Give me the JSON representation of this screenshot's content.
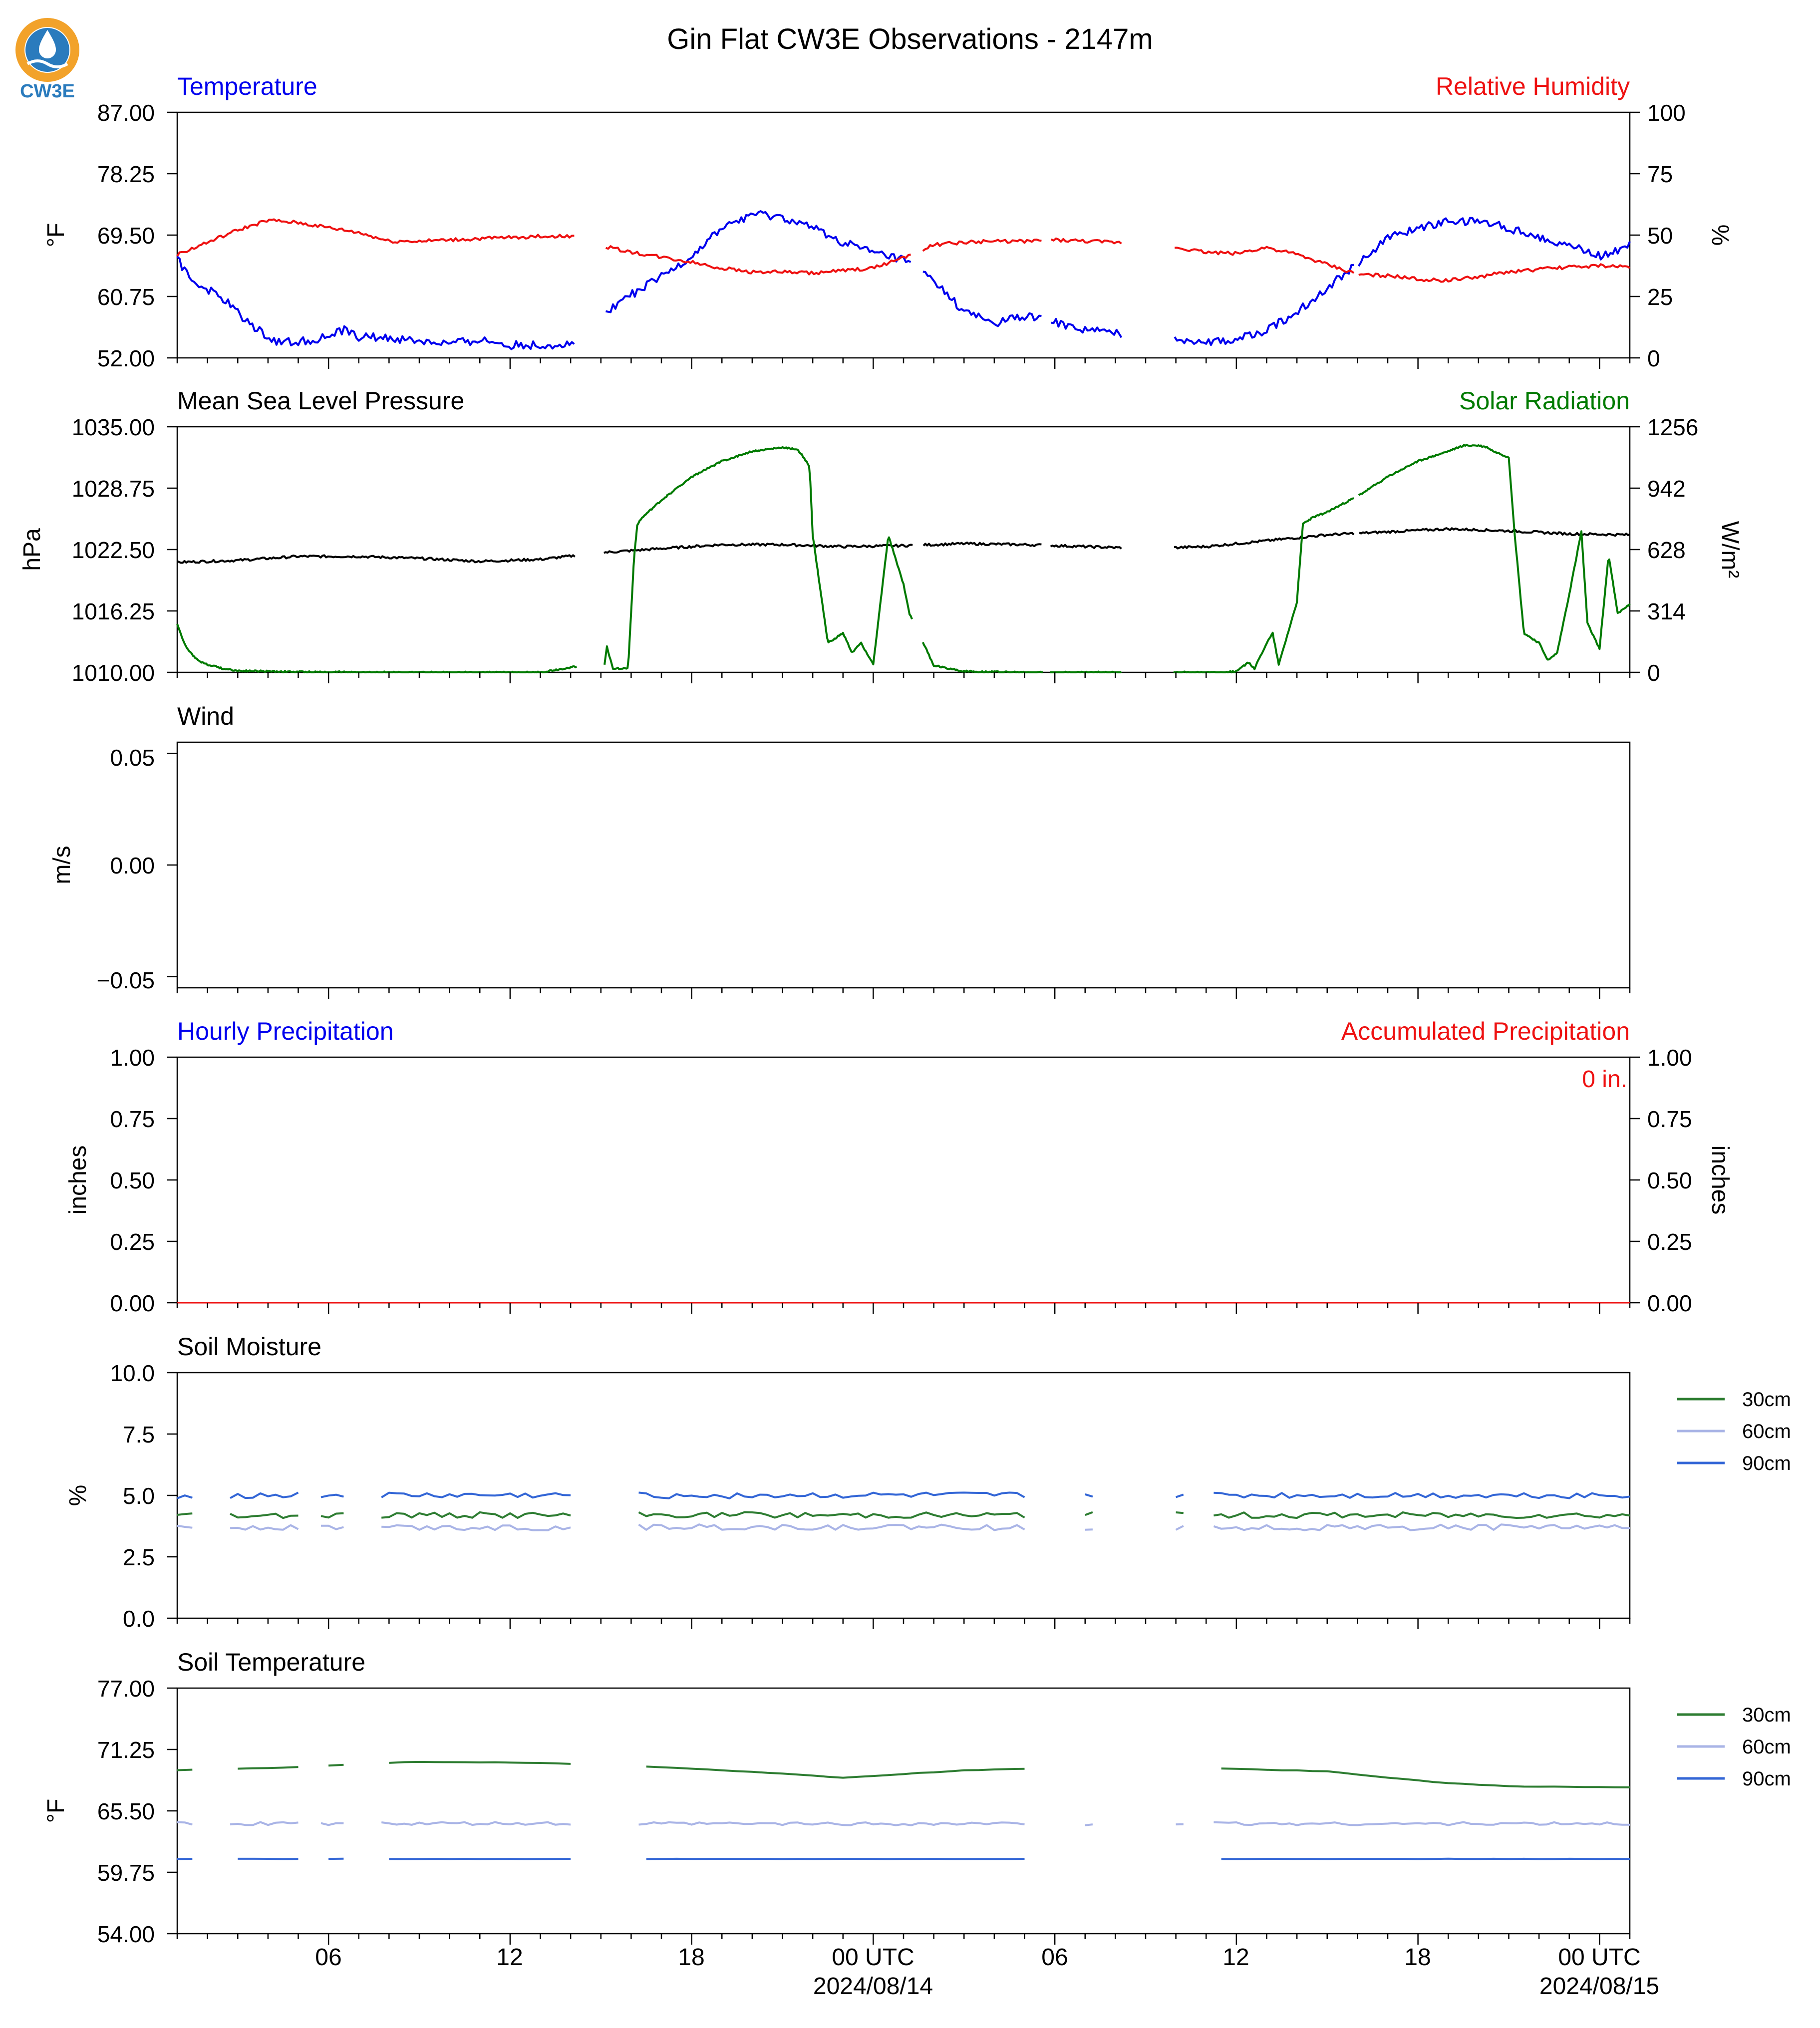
{
  "title": "Gin Flat CW3E Observations - 2147m",
  "logo": {
    "text": "CW3E",
    "colors": {
      "ring": "#f2a22a",
      "drop": "#2a7bbd",
      "wave": "#1d5f96"
    }
  },
  "colors": {
    "blue": "#0000ee",
    "red": "#ee1111",
    "green": "#007a00",
    "black": "#000000",
    "soil30": "#2e7d32",
    "soil60": "#a9b4e6",
    "soil90": "#3366d6"
  },
  "x_axis": {
    "range_hours": [
      0,
      48
    ],
    "ticks": [
      {
        "h": 5,
        "label": "06"
      },
      {
        "h": 11,
        "label": "12"
      },
      {
        "h": 17,
        "label": "18"
      },
      {
        "h": 23,
        "label": "00 UTC",
        "sublabel": "2024/08/14"
      },
      {
        "h": 29,
        "label": "06"
      },
      {
        "h": 35,
        "label": "12"
      },
      {
        "h": 41,
        "label": "18"
      },
      {
        "h": 47,
        "label": "00 UTC",
        "sublabel": "2024/08/15"
      }
    ]
  },
  "chart_data": [
    {
      "type": "line",
      "left_title": "Temperature",
      "right_title": "Relative Humidity",
      "ylabel": "°F",
      "ylim": [
        52,
        87
      ],
      "yticks": [
        "52.00",
        "60.75",
        "69.50",
        "78.25",
        "87.00"
      ],
      "ylabel_right": "%",
      "ylim_right": [
        0,
        100
      ],
      "yticks_right": [
        "0",
        "25",
        "50",
        "75",
        "100"
      ],
      "gaps_hours": [
        [
          13.2,
          14.1
        ],
        [
          24.3,
          24.6
        ],
        [
          28.6,
          28.8
        ],
        [
          31.2,
          32.9
        ],
        [
          38.9,
          39.0
        ]
      ],
      "series": [
        {
          "role": "temperature",
          "axis": "left",
          "color": "blue",
          "x": [
            0,
            0.5,
            1.5,
            2.5,
            3.3,
            4,
            5,
            5.5,
            6,
            7,
            8,
            9,
            10,
            11,
            12,
            13.2,
            14.1,
            15,
            16,
            17,
            18,
            19,
            20,
            21,
            22,
            23,
            24,
            25,
            26,
            27,
            28,
            29,
            30,
            31,
            32,
            33,
            34,
            35,
            36,
            37,
            38,
            39,
            40,
            41,
            42,
            43,
            44,
            45,
            46,
            47,
            48
          ],
          "y": [
            66,
            63,
            60.5,
            56.5,
            54.3,
            54.3,
            55,
            56,
            55,
            54.8,
            54.4,
            54,
            54.6,
            53.8,
            53.8,
            53.9,
            58.5,
            61,
            63.5,
            66.5,
            70.5,
            72.5,
            72,
            70.5,
            68.5,
            67,
            66,
            63,
            58.5,
            57,
            58,
            57,
            56,
            55.5,
            55,
            54.8,
            54.3,
            54.5,
            56,
            58.5,
            62,
            65.5,
            69,
            70.5,
            71.5,
            71.5,
            70.5,
            69.3,
            68,
            66.5,
            68
          ]
        },
        {
          "role": "humidity",
          "axis": "right",
          "color": "red",
          "x": [
            0,
            1,
            2,
            3,
            4,
            5,
            6,
            7,
            8,
            9,
            10,
            11,
            12,
            13.2,
            14.1,
            15,
            16,
            17,
            18,
            19,
            20,
            21,
            22,
            23,
            24,
            25,
            26,
            27,
            28,
            29,
            30,
            31,
            32,
            33,
            34,
            35,
            36,
            37,
            38,
            39,
            40,
            41,
            42,
            43,
            44,
            45,
            46,
            47,
            48
          ],
          "y": [
            42,
            47,
            52,
            56,
            55,
            53,
            51,
            47.5,
            47.5,
            48,
            48.5,
            49,
            49.5,
            49.5,
            45.5,
            43,
            41,
            39,
            36.5,
            35,
            35,
            34.5,
            35.5,
            36.5,
            41,
            46,
            47,
            47.5,
            47.5,
            48,
            47.5,
            47,
            46.5,
            45,
            43,
            42.5,
            45,
            42,
            38,
            34,
            33.5,
            32,
            31.5,
            33,
            35,
            36,
            37,
            37.5,
            37
          ]
        }
      ]
    },
    {
      "type": "line",
      "left_title": "Mean Sea Level Pressure",
      "right_title": "Solar Radiation",
      "ylabel": "hPa",
      "ylim": [
        1010,
        1035
      ],
      "yticks": [
        "1010.00",
        "1016.25",
        "1022.50",
        "1028.75",
        "1035.00"
      ],
      "ylabel_right": "W/m²",
      "ylim_right": [
        0,
        1256
      ],
      "yticks_right": [
        "0",
        "314",
        "628",
        "942",
        "1256"
      ],
      "gaps_hours": [
        [
          13.2,
          14.1
        ],
        [
          24.3,
          24.6
        ],
        [
          28.6,
          28.8
        ],
        [
          31.2,
          32.9
        ],
        [
          38.9,
          39.0
        ]
      ],
      "series": [
        {
          "role": "pressure",
          "axis": "left",
          "color": "black",
          "x": [
            0,
            2,
            4,
            6,
            8,
            10,
            12,
            13.2,
            14.1,
            16,
            18,
            20,
            22,
            24,
            26,
            28,
            30,
            32,
            34,
            36,
            38,
            40,
            42,
            44,
            46,
            48
          ],
          "y": [
            1021.2,
            1021.4,
            1021.8,
            1021.8,
            1021.6,
            1021.3,
            1021.5,
            1021.9,
            1022.2,
            1022.6,
            1023.0,
            1023.0,
            1022.8,
            1022.9,
            1023.1,
            1023.0,
            1022.8,
            1022.6,
            1022.8,
            1023.4,
            1024.0,
            1024.3,
            1024.6,
            1024.4,
            1024.1,
            1024.0
          ]
        },
        {
          "role": "solar",
          "axis": "right",
          "color": "green",
          "x": [
            0,
            0.1,
            0.3,
            0.5,
            0.7,
            1,
            1.5,
            2,
            4,
            8,
            12,
            13.2,
            14.1,
            14.2,
            14.4,
            14.9,
            15.1,
            15.2,
            15.3,
            15.5,
            16,
            17,
            18,
            19,
            20,
            20.5,
            20.7,
            20.9,
            21,
            21.5,
            22,
            22.3,
            22.6,
            23,
            23.5,
            24,
            24.2,
            25,
            26,
            28,
            30,
            31,
            33,
            34.6,
            35,
            35.4,
            35.6,
            36,
            36.2,
            36.4,
            37,
            37.2,
            37.5,
            38,
            39,
            40,
            41,
            42,
            42.5,
            43,
            43.3,
            43.5,
            44,
            44.2,
            44.5,
            45,
            45.3,
            45.6,
            46,
            46.4,
            46.6,
            47,
            47.3,
            47.6,
            48
          ],
          "y": [
            250,
            200,
            130,
            90,
            60,
            40,
            20,
            8,
            2,
            0,
            0,
            30,
            20,
            130,
            20,
            20,
            600,
            750,
            780,
            810,
            880,
            1000,
            1080,
            1130,
            1150,
            1140,
            1100,
            1050,
            700,
            150,
            200,
            100,
            150,
            40,
            700,
            450,
            300,
            35,
            5,
            0,
            0,
            0,
            0,
            0,
            5,
            50,
            20,
            150,
            200,
            40,
            360,
            760,
            790,
            820,
            900,
            1000,
            1080,
            1130,
            1160,
            1160,
            1150,
            1130,
            1100,
            700,
            200,
            150,
            60,
            100,
            400,
            720,
            250,
            120,
            600,
            300,
            350
          ]
        }
      ]
    },
    {
      "type": "line",
      "left_title": "Wind",
      "ylabel": "m/s",
      "ylim": [
        -0.055,
        0.055
      ],
      "yticks": [
        "−0.05",
        "0.00",
        "0.05"
      ],
      "series": []
    },
    {
      "type": "bar",
      "left_title": "Hourly Precipitation",
      "right_title": "Accumulated Precipitation",
      "ylabel": "inches",
      "ylim": [
        0,
        1
      ],
      "yticks": [
        "0.00",
        "0.25",
        "0.50",
        "0.75",
        "1.00"
      ],
      "ylabel_right": "inches",
      "ylim_right": [
        0,
        1
      ],
      "yticks_right": [
        "0.00",
        "0.25",
        "0.50",
        "0.75",
        "1.00"
      ],
      "annotation": "0 in.",
      "series": [
        {
          "role": "hourly",
          "color": "blue",
          "value": 0
        },
        {
          "role": "accumulated",
          "color": "red",
          "value": 0
        }
      ]
    },
    {
      "type": "line",
      "left_title": "Soil Moisture",
      "ylabel": "%",
      "ylim": [
        0,
        10
      ],
      "yticks": [
        "0.0",
        "2.5",
        "5.0",
        "7.5",
        "10.0"
      ],
      "legend": [
        "30cm",
        "60cm",
        "90cm"
      ],
      "gaps_hours": [
        [
          0.5,
          1.7
        ],
        [
          4.1,
          4.6
        ],
        [
          5.5,
          6.7
        ],
        [
          13.2,
          14.1
        ],
        [
          14.4,
          15.1
        ],
        [
          28.2,
          28.8
        ],
        [
          29.2,
          29.8
        ],
        [
          30.3,
          30.8
        ],
        [
          31.2,
          32.9
        ],
        [
          33.3,
          34.2
        ],
        [
          38.9,
          39.0
        ]
      ],
      "series": [
        {
          "name": "30cm",
          "color": "soil30",
          "x": [
            0,
            48
          ],
          "y": [
            4.2,
            4.2
          ]
        },
        {
          "name": "60cm",
          "color": "soil60",
          "x": [
            0,
            48
          ],
          "y": [
            3.7,
            3.7
          ]
        },
        {
          "name": "90cm",
          "color": "soil90",
          "x": [
            0,
            48
          ],
          "y": [
            5.0,
            5.0
          ]
        }
      ]
    },
    {
      "type": "line",
      "left_title": "Soil Temperature",
      "ylabel": "°F",
      "ylim": [
        54,
        77
      ],
      "yticks": [
        "54.00",
        "59.75",
        "65.50",
        "71.25",
        "77.00"
      ],
      "legend": [
        "30cm",
        "60cm",
        "90cm"
      ],
      "gaps_hours": [
        [
          0.5,
          1.7
        ],
        [
          4.1,
          4.6
        ],
        [
          5.5,
          6.7
        ],
        [
          13.2,
          14.1
        ],
        [
          14.4,
          15.1
        ],
        [
          28.2,
          28.8
        ],
        [
          29.2,
          29.8
        ],
        [
          30.3,
          30.8
        ],
        [
          31.2,
          32.9
        ],
        [
          33.3,
          34.2
        ],
        [
          38.9,
          39.0
        ]
      ],
      "series": [
        {
          "name": "30cm",
          "color": "soil30",
          "x": [
            0,
            4,
            6,
            8,
            12,
            16,
            20,
            22,
            26,
            30,
            34,
            38,
            40,
            42,
            44,
            48
          ],
          "y": [
            69.3,
            69.6,
            69.9,
            70.1,
            70.0,
            69.6,
            69.0,
            68.6,
            69.3,
            69.6,
            69.5,
            69.2,
            68.6,
            68.1,
            67.8,
            67.7
          ]
        },
        {
          "name": "60cm",
          "color": "soil60",
          "x": [
            0,
            48
          ],
          "y": [
            64.3,
            64.3
          ]
        },
        {
          "name": "90cm",
          "color": "soil90",
          "x": [
            0,
            48
          ],
          "y": [
            61.0,
            61.0
          ]
        }
      ]
    }
  ]
}
